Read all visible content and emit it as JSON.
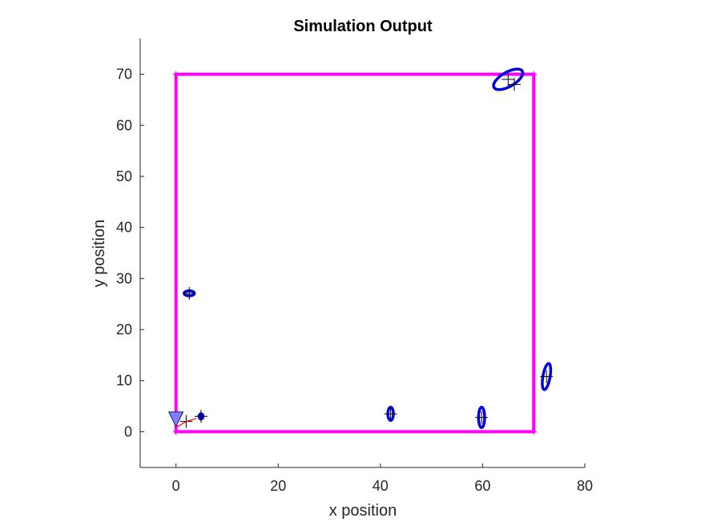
{
  "chart_data": {
    "type": "scatter",
    "title": "Simulation Output",
    "xlabel": "x position",
    "ylabel": "y position",
    "xlim": [
      -7,
      80
    ],
    "ylim": [
      -7,
      77
    ],
    "xticks": [
      0,
      20,
      40,
      60,
      80
    ],
    "yticks": [
      0,
      10,
      20,
      30,
      40,
      50,
      60,
      70
    ],
    "grid": false,
    "colors": {
      "boundary": "#ff00ff",
      "ellipse": "#0000dd",
      "marker": "#000000",
      "vehicle_fill": "#8080ff",
      "path": "#ff0000",
      "axis": "#262626"
    },
    "boundary": [
      [
        0,
        0
      ],
      [
        70,
        0
      ],
      [
        70,
        70
      ],
      [
        0,
        70
      ]
    ],
    "landmarks": [
      {
        "x": 65.0,
        "y": 69.0,
        "ellipse": {
          "rx": 3.2,
          "ry": 1.4,
          "angle_deg": -30
        }
      },
      {
        "x": 66.2,
        "y": 68.0,
        "ellipse": null
      },
      {
        "x": 2.6,
        "y": 27.1,
        "ellipse": {
          "rx": 1.0,
          "ry": 0.5,
          "angle_deg": 0
        }
      },
      {
        "x": 42.0,
        "y": 3.5,
        "ellipse": {
          "rx": 0.55,
          "ry": 1.3,
          "angle_deg": 0
        }
      },
      {
        "x": 59.8,
        "y": 2.8,
        "ellipse": {
          "rx": 0.6,
          "ry": 2.0,
          "angle_deg": 0
        }
      },
      {
        "x": 72.5,
        "y": 10.8,
        "ellipse": {
          "rx": 0.7,
          "ry": 2.6,
          "angle_deg": 10
        }
      },
      {
        "x": 4.9,
        "y": 3.0,
        "ellipse": {
          "rx": 0.4,
          "ry": 0.5,
          "angle_deg": 0
        }
      },
      {
        "x": 2.0,
        "y": 2.0,
        "ellipse": null
      }
    ],
    "vehicle": {
      "x": 0.0,
      "y": 2.3
    },
    "path": [
      [
        0.3,
        1.0
      ],
      [
        2.0,
        2.0
      ],
      [
        4.0,
        2.6
      ]
    ]
  }
}
